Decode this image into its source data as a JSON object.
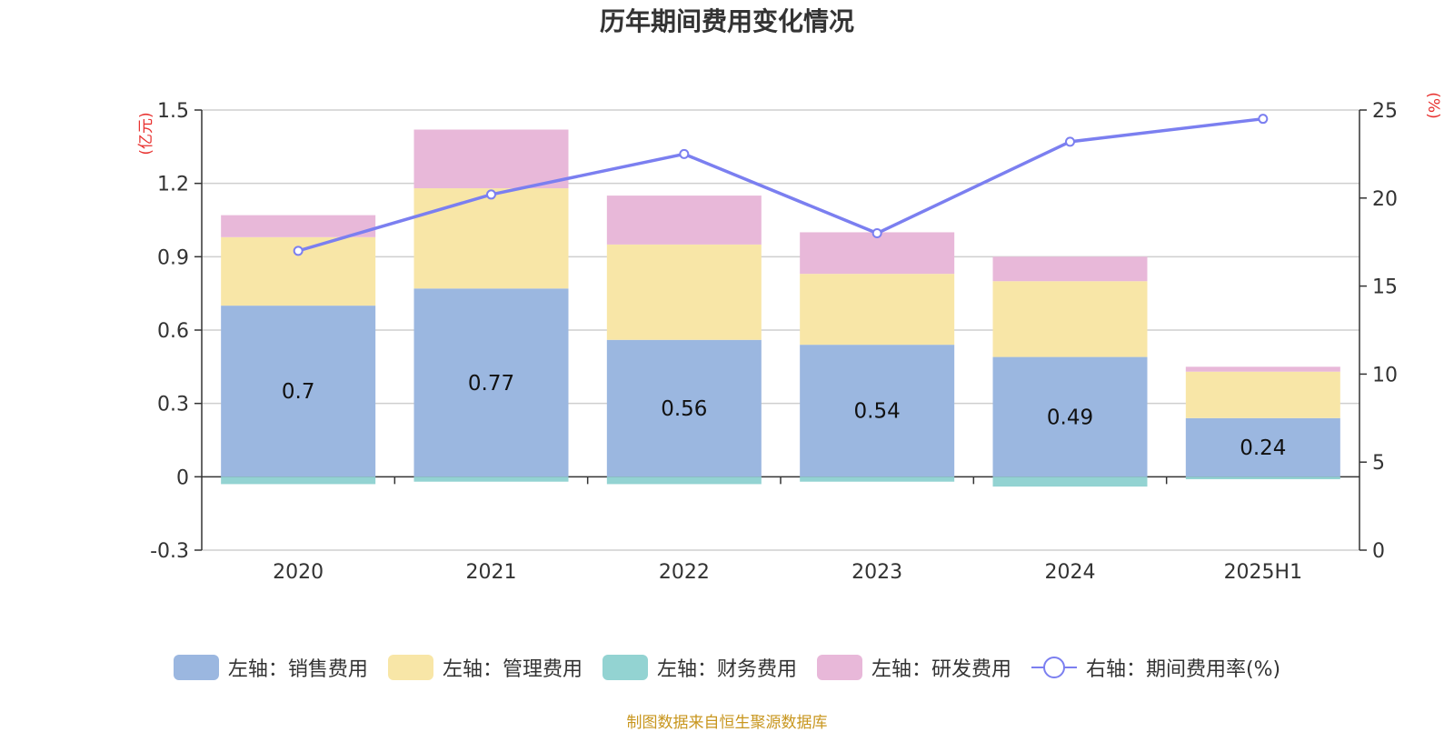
{
  "chart_data": {
    "type": "bar",
    "title": "历年期间费用变化情况",
    "categories": [
      "2020",
      "2021",
      "2022",
      "2023",
      "2024",
      "2025H1"
    ],
    "left_axis": {
      "unit_label": "(亿元)",
      "ticks": [
        "1.5",
        "1.2",
        "0.9",
        "0.6",
        "0.3",
        "0",
        "-0.3"
      ],
      "min": -0.3,
      "max": 1.5
    },
    "right_axis": {
      "unit_label": "(%)",
      "ticks": [
        "25",
        "20",
        "15",
        "10",
        "5",
        "0"
      ],
      "min": 0,
      "max": 25
    },
    "series": [
      {
        "name": "左轴：销售费用",
        "kind": "bar",
        "axis": "left",
        "color": "#9bb7e0",
        "values": [
          0.7,
          0.77,
          0.56,
          0.54,
          0.49,
          0.24
        ],
        "labels": [
          "0.7",
          "0.77",
          "0.56",
          "0.54",
          "0.49",
          "0.24"
        ]
      },
      {
        "name": "左轴：管理费用",
        "kind": "bar",
        "axis": "left",
        "color": "#f8e6a7",
        "values": [
          0.28,
          0.41,
          0.39,
          0.29,
          0.31,
          0.19
        ]
      },
      {
        "name": "左轴：财务费用",
        "kind": "bar",
        "axis": "left",
        "color": "#93d3d2",
        "values": [
          -0.03,
          -0.02,
          -0.03,
          -0.02,
          -0.04,
          -0.01
        ]
      },
      {
        "name": "左轴：研发费用",
        "kind": "bar",
        "axis": "left",
        "color": "#e8b8d9",
        "values": [
          0.09,
          0.24,
          0.2,
          0.17,
          0.1,
          0.02
        ]
      },
      {
        "name": "右轴：期间费用率(%)",
        "kind": "line",
        "axis": "right",
        "color": "#7b7ff0",
        "values": [
          17.0,
          20.2,
          22.5,
          18.0,
          23.2,
          24.5
        ]
      }
    ],
    "grid": true,
    "legend_position": "bottom"
  },
  "source_note": "制图数据来自恒生聚源数据库"
}
